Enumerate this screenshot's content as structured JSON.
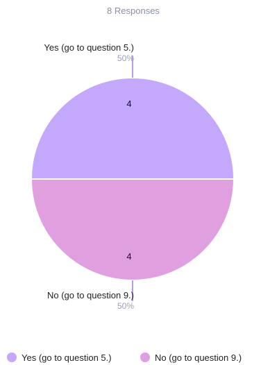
{
  "chart_data": {
    "type": "pie",
    "subtitle": "8 Responses",
    "slices": [
      {
        "label": "Yes (go to question 5.)",
        "value": 4,
        "percent_label": "50%",
        "color": "#c4a8fc"
      },
      {
        "label": "No (go to question 9.)",
        "value": 4,
        "percent_label": "50%",
        "color": "#e0a0e0"
      }
    ],
    "legend": {
      "position": "bottom",
      "items": [
        "Yes (go to question 5.)",
        "No (go to question 9.)"
      ]
    },
    "colors": {
      "connector": "#b79ae8",
      "slice_border": "#ffffff"
    }
  }
}
